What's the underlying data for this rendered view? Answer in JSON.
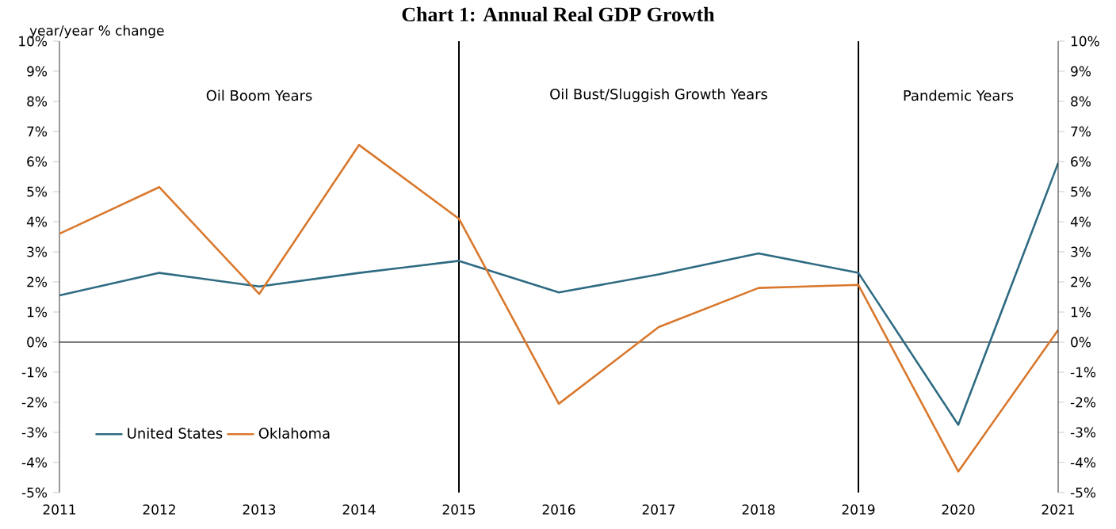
{
  "chart_data": {
    "type": "line",
    "title": "Chart 1: Annual Real GDP Growth",
    "ylabel": "year/year % change",
    "x": [
      2011,
      2012,
      2013,
      2014,
      2015,
      2016,
      2017,
      2018,
      2019,
      2020,
      2021
    ],
    "series": [
      {
        "name": "United States",
        "color": "#2e6b82",
        "values": [
          1.55,
          2.3,
          1.85,
          2.3,
          2.7,
          1.65,
          2.25,
          2.95,
          2.3,
          -2.75,
          5.95
        ]
      },
      {
        "name": "Oklahoma",
        "color": "#d9782d",
        "values": [
          3.6,
          5.15,
          1.6,
          6.55,
          4.1,
          -2.05,
          0.5,
          1.8,
          1.9,
          -4.3,
          0.4
        ]
      }
    ],
    "xlim": [
      2011,
      2021
    ],
    "xticks": [
      2011,
      2012,
      2013,
      2014,
      2015,
      2016,
      2017,
      2018,
      2019,
      2020,
      2021
    ],
    "ylim": [
      -5,
      10
    ],
    "yticks": [
      {
        "value": -5,
        "label": "-5%"
      },
      {
        "value": -4,
        "label": "-4%"
      },
      {
        "value": -3,
        "label": "-3%"
      },
      {
        "value": -2,
        "label": "-2%"
      },
      {
        "value": -1,
        "label": "-1%"
      },
      {
        "value": 0,
        "label": "0%"
      },
      {
        "value": 1,
        "label": "1%"
      },
      {
        "value": 2,
        "label": "2%"
      },
      {
        "value": 3,
        "label": "3%"
      },
      {
        "value": 4,
        "label": "4%"
      },
      {
        "value": 5,
        "label": "5%"
      },
      {
        "value": 6,
        "label": "6%"
      },
      {
        "value": 7,
        "label": "7%"
      },
      {
        "value": 8,
        "label": "8%"
      },
      {
        "value": 9,
        "label": "9%"
      },
      {
        "value": 10,
        "label": "10%"
      }
    ],
    "y2lim": [
      -5,
      10
    ],
    "y2ticks": [
      {
        "value": -5,
        "label": "-5%"
      },
      {
        "value": -4,
        "label": "-4%"
      },
      {
        "value": -3,
        "label": "-3%"
      },
      {
        "value": -2,
        "label": "-2%"
      },
      {
        "value": -1,
        "label": "-1%"
      },
      {
        "value": 0,
        "label": "0%"
      },
      {
        "value": 1,
        "label": "1%"
      },
      {
        "value": 2,
        "label": "2%"
      },
      {
        "value": 3,
        "label": "3%"
      },
      {
        "value": 4,
        "label": "4%"
      },
      {
        "value": 5,
        "label": "5%"
      },
      {
        "value": 6,
        "label": "6%"
      },
      {
        "value": 7,
        "label": "7%"
      },
      {
        "value": 8,
        "label": "8%"
      },
      {
        "value": 9,
        "label": "9%"
      },
      {
        "value": 10,
        "label": "10%"
      }
    ],
    "ref_lines": [
      {
        "axis": "x",
        "value": 2015,
        "color": "#000000"
      },
      {
        "axis": "x",
        "value": 2019,
        "color": "#000000"
      },
      {
        "axis": "y",
        "value": 0,
        "color": "#000000"
      }
    ],
    "annotations": [
      "Oil Boom Years",
      "Oil Bust/Sluggish Growth Years",
      "Pandemic Years"
    ],
    "legend": "bottom left",
    "grid": false
  }
}
